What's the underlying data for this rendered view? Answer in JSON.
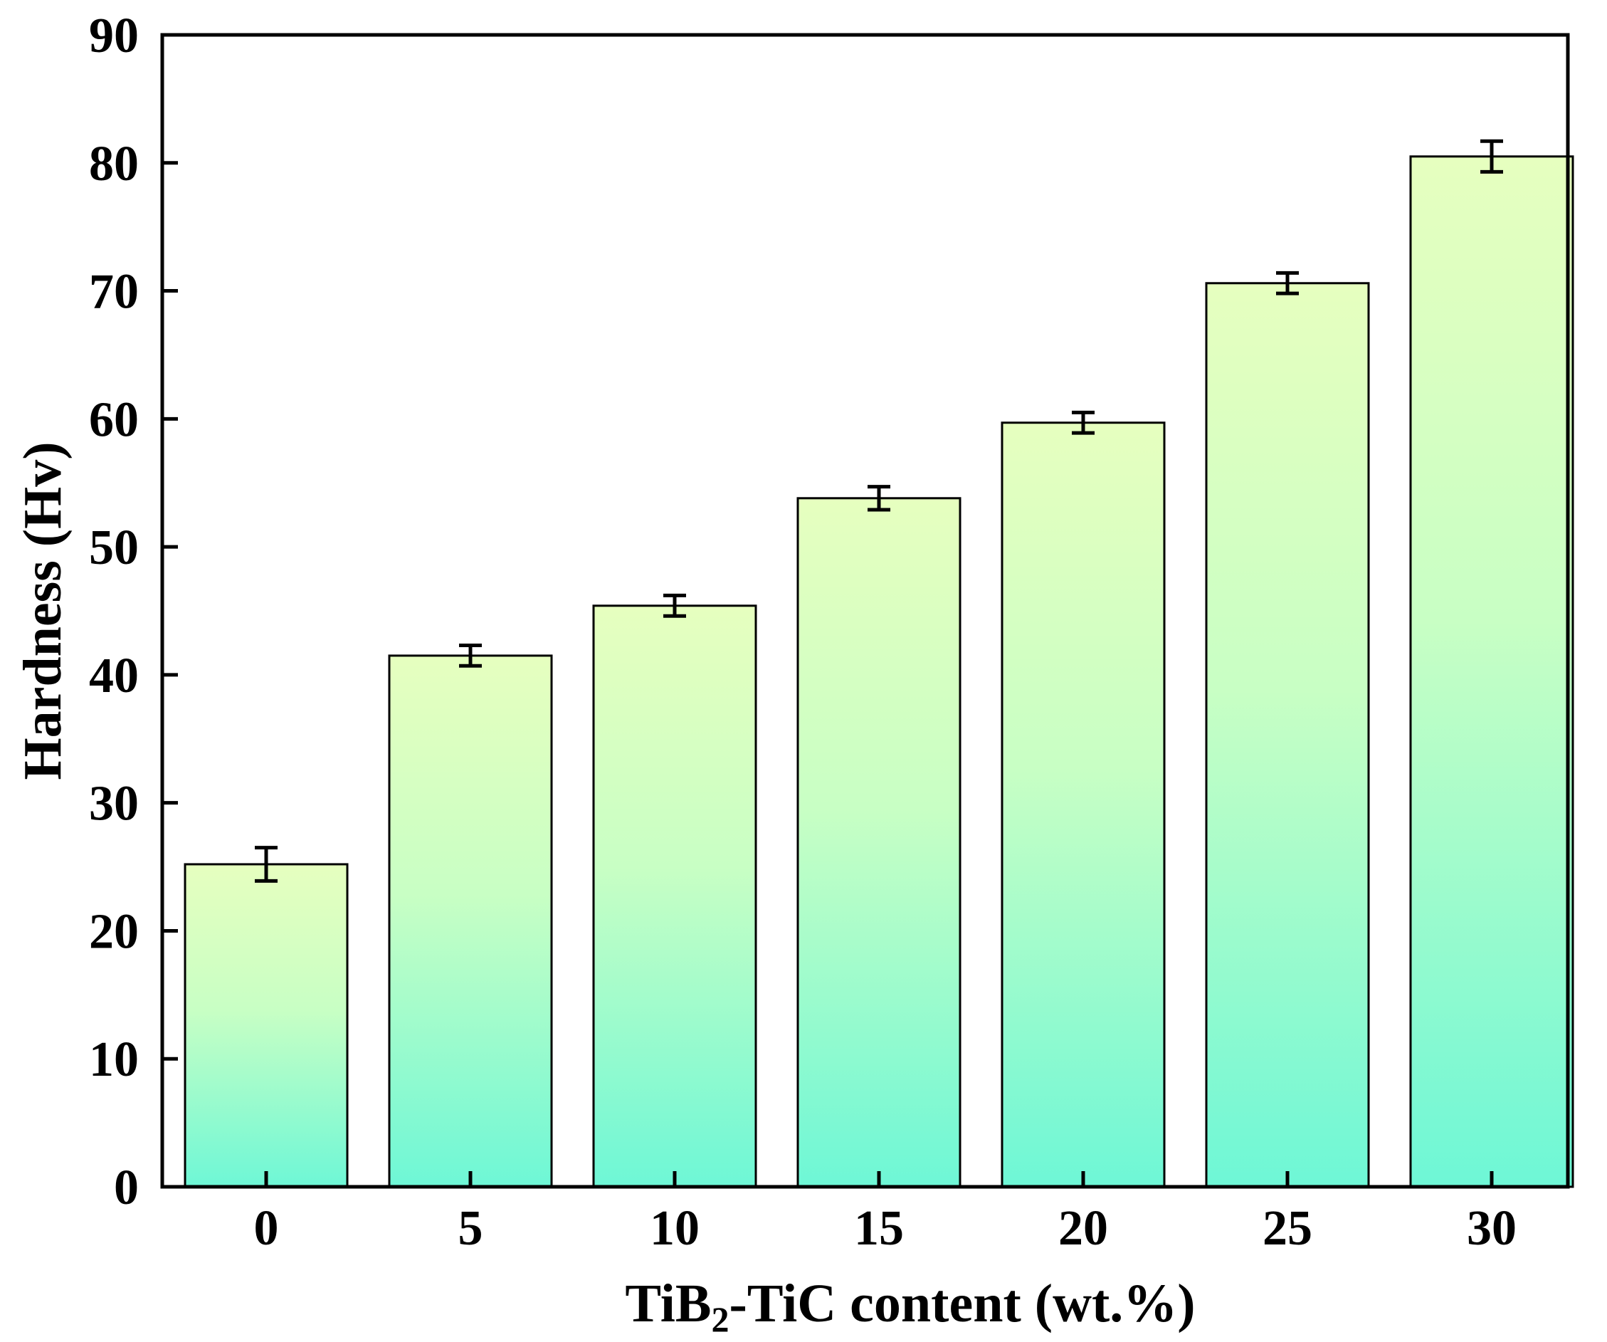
{
  "chart_data": {
    "type": "bar",
    "title": "",
    "categories": [
      "0",
      "5",
      "10",
      "15",
      "20",
      "25",
      "30"
    ],
    "values": [
      25.2,
      41.5,
      45.4,
      53.8,
      59.7,
      70.6,
      80.5
    ],
    "errors": [
      1.3,
      0.8,
      0.8,
      0.9,
      0.8,
      0.8,
      1.2
    ],
    "xlabel": {
      "main": "TiB",
      "subscript": "2",
      "rest": "-TiC content (wt.%)"
    },
    "ylabel": "Hardness (Hv)",
    "ylim": [
      0,
      90
    ],
    "yticks": [
      "0",
      "10",
      "20",
      "30",
      "40",
      "50",
      "60",
      "70",
      "80",
      "90"
    ],
    "grid": false,
    "legend": "none",
    "colors": {
      "gradient_top": "#e6ffbf",
      "gradient_bottom": "#6ef7d6",
      "edge": "#000000"
    }
  }
}
